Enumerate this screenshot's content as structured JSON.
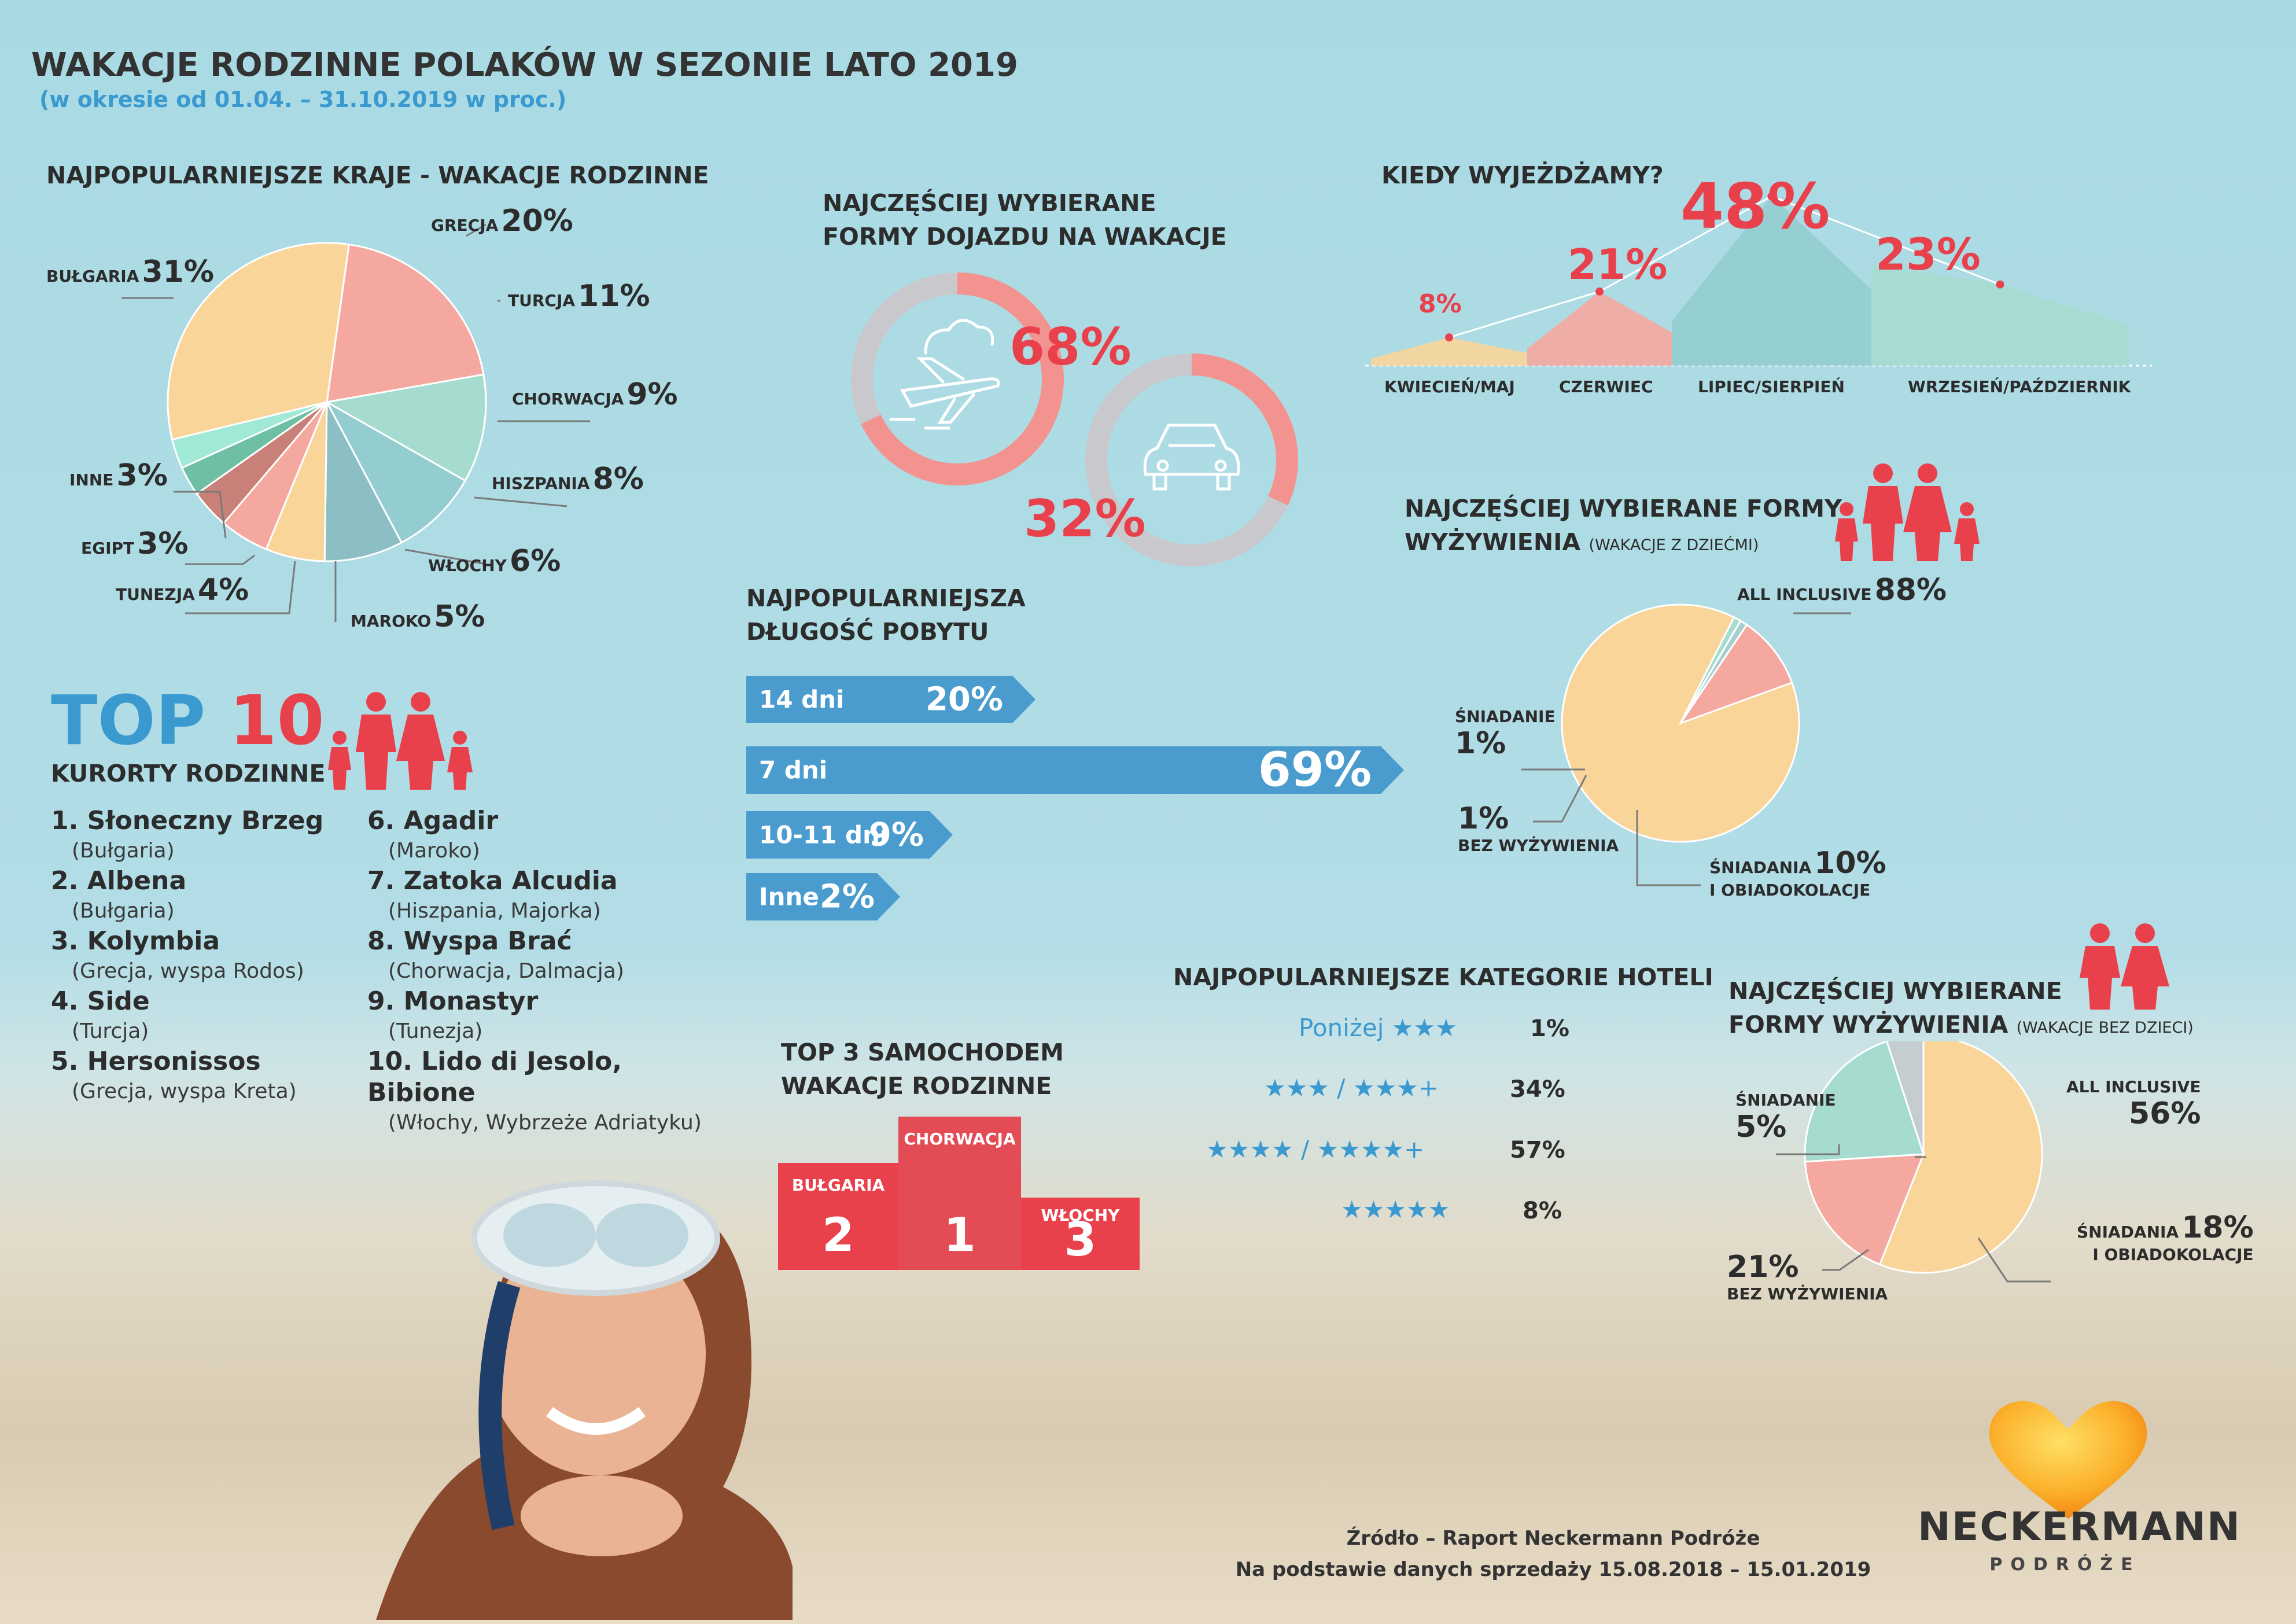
{
  "header": {
    "title": "WAKACJE RODZINNE POLAKÓW W SEZONIE LATO 2019",
    "subtitle": "(w okresie od 01.04. – 31.10.2019 w proc.)"
  },
  "countries": {
    "title": "NAJPOPULARNIEJSZE KRAJE  - WAKACJE RODZINNE",
    "items": [
      {
        "label": "GRECJA",
        "value": "20%"
      },
      {
        "label": "TURCJA",
        "value": "11%"
      },
      {
        "label": "CHORWACJA",
        "value": "9%"
      },
      {
        "label": "HISZPANIA",
        "value": "8%"
      },
      {
        "label": "WŁOCHY",
        "value": "6%"
      },
      {
        "label": "MAROKO",
        "value": "5%"
      },
      {
        "label": "TUNEZJA",
        "value": "4%"
      },
      {
        "label": "EGIPT",
        "value": "3%"
      },
      {
        "label": "INNE",
        "value": "3%"
      },
      {
        "label": "BUŁGARIA",
        "value": "31%"
      }
    ]
  },
  "transport": {
    "title_line1": "NAJCZĘŚCIEJ WYBIERANE",
    "title_line2": "FORMY DOJAZDU NA WAKACJE",
    "plane_value": "68%",
    "car_value": "32%"
  },
  "when": {
    "title": "KIEDY WYJEŻDŻAMY?",
    "periods": [
      {
        "label": "KWIECIEŃ/MAJ",
        "value": "8%"
      },
      {
        "label": "CZERWIEC",
        "value": "21%"
      },
      {
        "label": "LIPIEC/SIERPIEŃ",
        "value": "48%"
      },
      {
        "label": "WRZESIEŃ/PAŹDZIERNIK",
        "value": "23%"
      }
    ]
  },
  "meals_kids": {
    "title_line1": "NAJCZĘŚCIEJ WYBIERANE FORMY",
    "title_line2": "WYŻYWIENIA",
    "title_note": "(WAKACJE Z DZIEĆMI)",
    "all_inclusive_label": "ALL INCLUSIVE",
    "all_inclusive_value": "88%",
    "breakfast_label": "ŚNIADANIE",
    "breakfast_value": "1%",
    "none_value": "1%",
    "none_label": "BEZ WYŻYWIENIA",
    "half_label1": "ŚNIADANIA",
    "half_value": "10%",
    "half_label2": "I OBIADOKOLACJE"
  },
  "top10": {
    "top": "TOP",
    "ten": "10",
    "subtitle": "KURORTY RODZINNE",
    "resorts": [
      {
        "name": "1. Słoneczny Brzeg",
        "region": "(Bułgaria)"
      },
      {
        "name": "2. Albena",
        "region": "(Bułgaria)"
      },
      {
        "name": "3. Kolymbia",
        "region": "(Grecja, wyspa Rodos)"
      },
      {
        "name": "4. Side",
        "region": "(Turcja)"
      },
      {
        "name": "5. Hersonissos",
        "region": "(Grecja, wyspa Kreta)"
      },
      {
        "name": "6. Agadir",
        "region": "(Maroko)"
      },
      {
        "name": "7. Zatoka Alcudia",
        "region": "(Hiszpania, Majorka)"
      },
      {
        "name": "8. Wyspa Brać",
        "region": "(Chorwacja, Dalmacja)"
      },
      {
        "name": "9. Monastyr",
        "region": "(Tunezja)"
      },
      {
        "name": "10. Lido di Jesolo, Bibione",
        "region": "(Włochy, Wybrzeże Adriatyku)"
      }
    ]
  },
  "stay": {
    "title_line1": "NAJPOPULARNIEJSZA",
    "title_line2": "DŁUGOŚĆ POBYTU",
    "items": [
      {
        "label": "14 dni",
        "value": "20%"
      },
      {
        "label": "7 dni",
        "value": "69%"
      },
      {
        "label": "10-11 dni",
        "value": "9%"
      },
      {
        "label": "Inne",
        "value": "2%"
      }
    ]
  },
  "hotels": {
    "title": "NAJPOPULARNIEJSZE KATEGORIE HOTELI",
    "rows": [
      {
        "label": "Poniżej ★★★",
        "value": "1%"
      },
      {
        "label": "★★★ / ★★★+",
        "value": "34%"
      },
      {
        "label": "★★★★ / ★★★★+",
        "value": "57%"
      },
      {
        "label": "★★★★★",
        "value": "8%"
      }
    ]
  },
  "car_top3": {
    "title_line1": "TOP 3  SAMOCHODEM",
    "title_line2": "WAKACJE RODZINNE",
    "first": {
      "name": "CHORWACJA",
      "rank": "1"
    },
    "second": {
      "name": "BUŁGARIA",
      "rank": "2"
    },
    "third": {
      "name": "WŁOCHY",
      "rank": "3"
    }
  },
  "meals_adults": {
    "title_line1": "NAJCZĘŚCIEJ WYBIERANE",
    "title_line2": "FORMY WYŻYWIENIA",
    "title_note": "(WAKACJE BEZ DZIECI)",
    "all_inclusive_label": "ALL INCLUSIVE",
    "all_inclusive_value": "56%",
    "breakfast_label": "ŚNIADANIE",
    "breakfast_value": "5%",
    "half_label1": "ŚNIADANIA",
    "half_value": "18%",
    "half_label2": "I OBIADOKOLACJE",
    "none_value": "21%",
    "none_label": "BEZ WYŻYWIENIA"
  },
  "footer": {
    "source": "Źródło – Raport Neckermann Podróże",
    "basis": "Na podstawie danych sprzedaży 15.08.2018 – 15.01.2019"
  },
  "brand": {
    "name": "NECKERMANN",
    "sub": "PODRÓŻE"
  },
  "colors": {
    "red": "#e9414c",
    "blue": "#3a9ad0",
    "peach": "#f9d59a",
    "pink": "#f5a8a0",
    "mint": "#a6dcd0",
    "teal": "#93cdcf",
    "gray": "#c9c9cd"
  },
  "chart_data": [
    {
      "type": "pie",
      "title": "NAJPOPULARNIEJSZE KRAJE  - WAKACJE RODZINNE",
      "categories": [
        "GRECJA",
        "TURCJA",
        "CHORWACJA",
        "HISZPANIA",
        "WŁOCHY",
        "MAROKO",
        "TUNEZJA",
        "EGIPT",
        "INNE",
        "BUŁGARIA"
      ],
      "values": [
        20,
        11,
        9,
        8,
        6,
        5,
        4,
        3,
        3,
        31
      ]
    },
    {
      "type": "pie",
      "title": "NAJCZĘŚCIEJ WYBIERANE FORMY DOJAZDU NA WAKACJE",
      "categories": [
        "",
        ""
      ],
      "values": [
        68,
        32
      ]
    },
    {
      "type": "area",
      "title": "KIEDY WYJEŻDŻAMY?",
      "categories": [
        "KWIECIEŃ/MAJ",
        "CZERWIEC",
        "LIPIEC/SIERPIEŃ",
        "WRZESIEŃ/PAŹDZIERNIK"
      ],
      "values": [
        8,
        21,
        48,
        23
      ]
    },
    {
      "type": "bar",
      "title": "NAJPOPULARNIEJSZA DŁUGOŚĆ POBYTU",
      "categories": [
        "14 dni",
        "7 dni",
        "10-11 dni",
        "Inne"
      ],
      "values": [
        20,
        69,
        9,
        2
      ]
    },
    {
      "type": "pie",
      "title": "NAJCZĘŚCIEJ WYBIERANE FORMY WYŻYWIENIA (WAKACJE Z DZIEĆMI)",
      "categories": [
        "ALL INCLUSIVE",
        "ŚNIADANIE",
        "BEZ WYŻYWIENIA",
        "ŚNIADANIA I OBIADOKOLACJE"
      ],
      "values": [
        88,
        1,
        1,
        10
      ]
    },
    {
      "type": "pie",
      "title": "NAJCZĘŚCIEJ WYBIERANE FORMY WYŻYWIENIA (WAKACJE BEZ DZIECI)",
      "categories": [
        "ALL INCLUSIVE",
        "ŚNIADANIA I OBIADOKOLACJE",
        "BEZ WYŻYWIENIA",
        "ŚNIADANIE"
      ],
      "values": [
        56,
        18,
        21,
        5
      ]
    },
    {
      "type": "table",
      "title": "NAJPOPULARNIEJSZE KATEGORIE HOTELI",
      "categories": [
        "Poniżej ★★★",
        "★★★ / ★★★+",
        "★★★★ / ★★★★+",
        "★★★★★"
      ],
      "values": [
        1,
        34,
        57,
        8
      ]
    }
  ]
}
